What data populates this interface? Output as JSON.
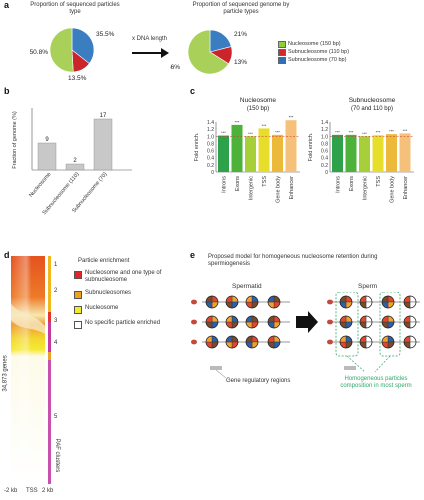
{
  "panel_letters": {
    "a": "a",
    "b": "b",
    "c": "c",
    "d": "d",
    "e": "e"
  },
  "panel_a": {
    "left_title": "Proportion of sequenced particles type",
    "right_title": "Proportion of sequenced genome by particle types",
    "arrow_label": "x DNA length",
    "left_pie": {
      "type": "pie",
      "values": [
        50.8,
        13.5,
        35.5
      ],
      "labels": [
        "50.8%",
        "13.5%",
        "35.5%"
      ]
    },
    "right_pie": {
      "type": "pie",
      "values": [
        66,
        13,
        21
      ],
      "labels": [
        "66%",
        "13%",
        "21%"
      ]
    },
    "legend": [
      {
        "label": "Nucleosome (150 bp)",
        "color": "#8fcf3c"
      },
      {
        "label": "Subnucleosome (110 bp)",
        "color": "#d7262b"
      },
      {
        "label": "Subnucleosome (70 bp)",
        "color": "#2f6fb7"
      }
    ],
    "colors": [
      "#a9d15a",
      "#c9252b",
      "#3b7dc1"
    ]
  },
  "panel_b": {
    "chart_data": {
      "type": "bar",
      "categories": [
        "Nucleosome",
        "Subnucleosome (110)",
        "Subnucleosome (70)"
      ],
      "values": [
        9,
        2,
        17
      ],
      "value_labels": [
        "9",
        "2",
        "17"
      ],
      "ylabel": "Fraction of genome (%)"
    }
  },
  "panel_c": {
    "chart_data": [
      {
        "type": "bar",
        "title": "Nucleosome",
        "subtitle": "(150 bp)",
        "ylabel": "Fold enrich.",
        "categories": [
          "Introns",
          "Exons",
          "Intergenic",
          "TSS",
          "Gene body",
          "Enhancer"
        ],
        "values": [
          1.02,
          1.32,
          1.0,
          1.22,
          1.04,
          1.45
        ],
        "ylim": [
          0,
          1.4
        ],
        "ticks": [
          "0",
          "0.2",
          "0.4",
          "0.6",
          "0.8",
          "1.0",
          "1.2",
          "1.4"
        ],
        "sig": [
          "***",
          "***",
          "***",
          "***",
          "***",
          "***"
        ],
        "colors": [
          "#2ea24a",
          "#4db23a",
          "#a6cf3a",
          "#e7de2c",
          "#edb93b",
          "#f4c07a"
        ]
      },
      {
        "type": "bar",
        "title": "Subnucleosome",
        "subtitle": "(70 and 110 bp)",
        "ylabel": "Fold enrich.",
        "categories": [
          "Introns",
          "Exons",
          "Intergenic",
          "TSS",
          "Gene body",
          "Enhancer"
        ],
        "values": [
          1.04,
          1.04,
          1.0,
          1.03,
          1.06,
          1.08
        ],
        "ylim": [
          0,
          1.4
        ],
        "ticks": [
          "0",
          "0.2",
          "0.4",
          "0.6",
          "0.8",
          "1.0",
          "1.2",
          "1.4"
        ],
        "sig": [
          "***",
          "***",
          "***",
          "***",
          "***",
          "***"
        ],
        "colors": [
          "#2ea24a",
          "#4db23a",
          "#a6cf3a",
          "#e7de2c",
          "#edb93b",
          "#f4c07a"
        ]
      }
    ]
  },
  "panel_d": {
    "y_label": "34,873 genes",
    "x_ticks": [
      "-2 kb",
      "TSS",
      "2 kb"
    ],
    "legend_title": "Particle enrichment",
    "legend": [
      {
        "label": "Nucleosome and one type of subnucleosome",
        "color": "#e0262b"
      },
      {
        "label": "Subnucleosomes",
        "color": "#f0a020"
      },
      {
        "label": "Nucleosome",
        "color": "#f3ea2a"
      },
      {
        "label": "No specific particle enriched",
        "color": "#ffffff"
      }
    ],
    "cluster_labels": [
      "1",
      "2",
      "3",
      "4",
      "5"
    ],
    "cluster_side": "PAF clusters"
  },
  "panel_e": {
    "title": "Proposed model for homogeneous nucleosome retention during spermiogenesis",
    "spermatid": "Spermatid",
    "sperm": "Sperm",
    "gene_regions": "Gene regulatory regions",
    "homog_note": "Homogeneous particles composition in most sperm"
  }
}
